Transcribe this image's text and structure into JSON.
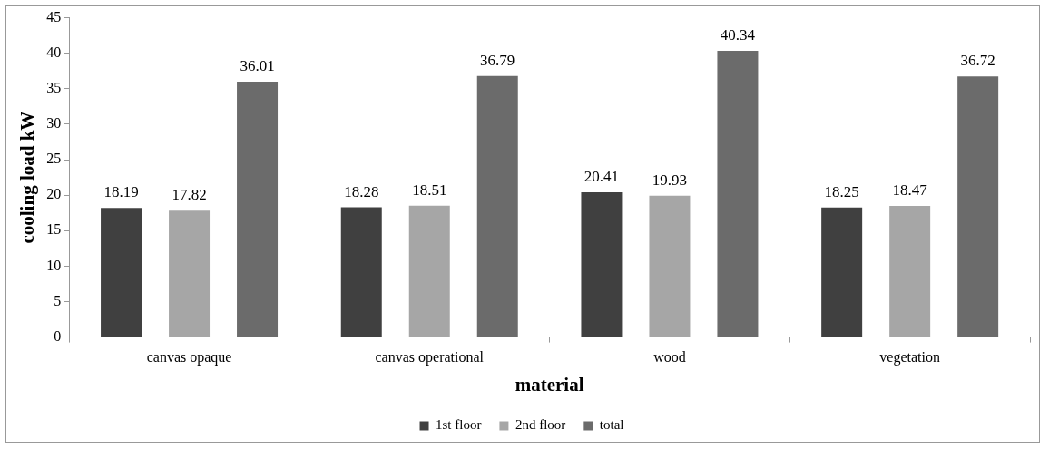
{
  "chart_data": {
    "type": "bar",
    "xlabel": "material",
    "ylabel": "cooling load kW",
    "categories": [
      "canvas opaque",
      "canvas operational",
      "wood",
      "vegetation"
    ],
    "series": [
      {
        "name": "1st floor",
        "color": "#404040",
        "values": [
          18.19,
          18.28,
          20.41,
          18.25
        ]
      },
      {
        "name": "2nd floor",
        "color": "#a6a6a6",
        "values": [
          17.82,
          18.51,
          19.93,
          18.47
        ]
      },
      {
        "name": "total",
        "color": "#6b6b6b",
        "values": [
          36.01,
          36.79,
          40.34,
          36.72
        ]
      }
    ],
    "ylim": [
      0,
      45
    ],
    "yticks": [
      0,
      5,
      10,
      15,
      20,
      25,
      30,
      35,
      40,
      45
    ],
    "grid": false,
    "legend": "bottom",
    "data_labels": true
  }
}
